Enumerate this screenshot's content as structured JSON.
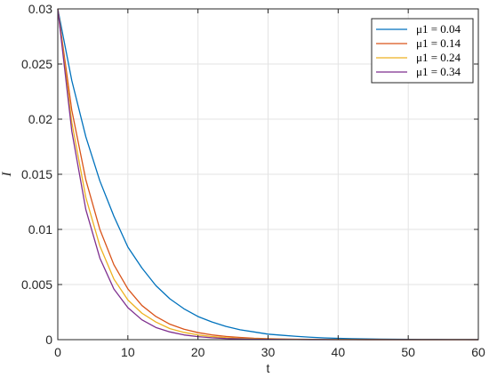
{
  "chart_data": {
    "type": "line",
    "title": "",
    "xlabel": "t",
    "ylabel": "I",
    "xlim": [
      0,
      60
    ],
    "ylim": [
      0,
      0.03
    ],
    "xticks": [
      0,
      10,
      20,
      30,
      40,
      50,
      60
    ],
    "xtick_labels": [
      "0",
      "10",
      "20",
      "30",
      "40",
      "50",
      "60"
    ],
    "yticks": [
      0,
      0.005,
      0.01,
      0.015,
      0.02,
      0.025,
      0.03
    ],
    "ytick_labels": [
      "0",
      "0.005",
      "0.01",
      "0.015",
      "0.02",
      "0.025",
      "0.03"
    ],
    "grid": true,
    "legend_position": "top-right",
    "x": [
      0,
      2,
      4,
      6,
      8,
      10,
      12,
      14,
      16,
      18,
      20,
      22,
      24,
      26,
      28,
      30,
      32,
      34,
      36,
      38,
      40,
      42,
      44,
      46,
      48,
      50,
      52,
      54,
      56,
      58,
      60
    ],
    "series": [
      {
        "name": "μ1 = 0.04",
        "color": "#0072BD",
        "values": [
          0.03,
          0.0235,
          0.0184,
          0.0144,
          0.0112,
          0.0084,
          0.0065,
          0.0049,
          0.0037,
          0.0028,
          0.0021,
          0.0016,
          0.0012,
          0.0009,
          0.0007,
          0.0005,
          0.0004,
          0.0003,
          0.00022,
          0.00016,
          0.00012,
          9e-05,
          7e-05,
          5e-05,
          4e-05,
          3e-05,
          2e-05,
          1.5e-05,
          1e-05,
          8e-06,
          6e-06
        ]
      },
      {
        "name": "μ1 = 0.14",
        "color": "#D95319",
        "values": [
          0.03,
          0.0208,
          0.0145,
          0.01,
          0.0068,
          0.0046,
          0.0031,
          0.0021,
          0.0014,
          0.00095,
          0.00064,
          0.00043,
          0.00029,
          0.0002,
          0.00013,
          9e-05,
          6e-05,
          4e-05,
          2.7e-05,
          1.8e-05,
          1.2e-05,
          8e-06,
          5.5e-06,
          3.7e-06,
          2.5e-06,
          1.7e-06,
          1.1e-06,
          8e-07,
          5e-07,
          4e-07,
          2e-07
        ]
      },
      {
        "name": "μ1 = 0.24",
        "color": "#EDB120",
        "values": [
          0.03,
          0.0197,
          0.0129,
          0.0085,
          0.0055,
          0.0036,
          0.0024,
          0.0016,
          0.001,
          0.00066,
          0.00043,
          0.00028,
          0.00018,
          0.00012,
          8e-05,
          5e-05,
          3.4e-05,
          2.2e-05,
          1.4e-05,
          9e-06,
          6e-06,
          4e-06,
          2.6e-06,
          1.7e-06,
          1.1e-06,
          7e-07,
          5e-07,
          3e-07,
          2e-07,
          1e-07,
          1e-07
        ]
      },
      {
        "name": "μ1 = 0.34",
        "color": "#7E2F8E",
        "values": [
          0.03,
          0.0189,
          0.0118,
          0.0074,
          0.0046,
          0.0029,
          0.0018,
          0.0011,
          0.0007,
          0.00043,
          0.00027,
          0.00017,
          0.0001,
          6.5e-05,
          4e-05,
          2.5e-05,
          1.6e-05,
          1e-05,
          6e-06,
          4e-06,
          2.4e-06,
          1.5e-06,
          9e-07,
          6e-07,
          4e-07,
          2e-07,
          1e-07,
          1e-07,
          1e-07,
          1e-07,
          1e-07
        ]
      }
    ]
  }
}
